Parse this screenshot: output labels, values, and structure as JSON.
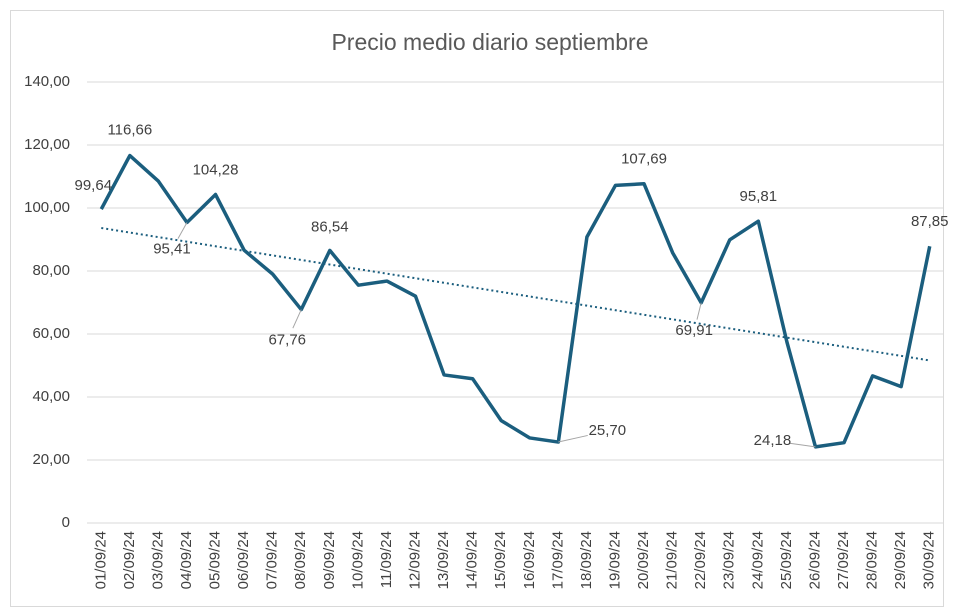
{
  "chart_data": {
    "type": "line",
    "title": "Precio medio diario septiembre",
    "categories": [
      "01/09/24",
      "02/09/24",
      "03/09/24",
      "04/09/24",
      "05/09/24",
      "06/09/24",
      "07/09/24",
      "08/09/24",
      "09/09/24",
      "10/09/24",
      "11/09/24",
      "12/09/24",
      "13/09/24",
      "14/09/24",
      "15/09/24",
      "16/09/24",
      "17/09/24",
      "18/09/24",
      "19/09/24",
      "20/09/24",
      "21/09/24",
      "22/09/24",
      "23/09/24",
      "24/09/24",
      "25/09/24",
      "26/09/24",
      "27/09/24",
      "28/09/24",
      "29/09/24",
      "30/09/24"
    ],
    "series": [
      {
        "name": "Precio medio",
        "color": "#1b5e7e",
        "values": [
          99.64,
          116.66,
          108.5,
          95.41,
          104.28,
          86.6,
          79,
          67.76,
          86.54,
          75.5,
          76.8,
          72,
          47,
          45.8,
          32.5,
          27,
          25.7,
          90.8,
          107.2,
          107.69,
          85.8,
          69.91,
          89.9,
          95.81,
          57.5,
          24.18,
          25.5,
          46.7,
          43.3,
          87.85
        ],
        "value_labels": [
          "99,64",
          "116,66",
          null,
          "95,41",
          "104,28",
          null,
          null,
          "67,76",
          "86,54",
          null,
          null,
          null,
          null,
          null,
          null,
          null,
          "25,70",
          null,
          null,
          "107,69",
          null,
          "69,91",
          null,
          "95,81",
          null,
          "24,18",
          null,
          null,
          null,
          "87,85"
        ]
      }
    ],
    "trendline": {
      "type": "linear",
      "color": "#1b5e7e"
    },
    "ylim": [
      0,
      140
    ],
    "yticks": [
      0,
      {
        "value": 20,
        "label": "20,00"
      },
      {
        "value": 40,
        "label": "40,00"
      },
      {
        "value": 60,
        "label": "60,00"
      },
      {
        "value": 80,
        "label": "80,00"
      },
      {
        "value": 100,
        "label": "100,00"
      },
      {
        "value": 120,
        "label": "120,00"
      },
      {
        "value": 140,
        "label": "140,00"
      }
    ],
    "grid": true
  }
}
